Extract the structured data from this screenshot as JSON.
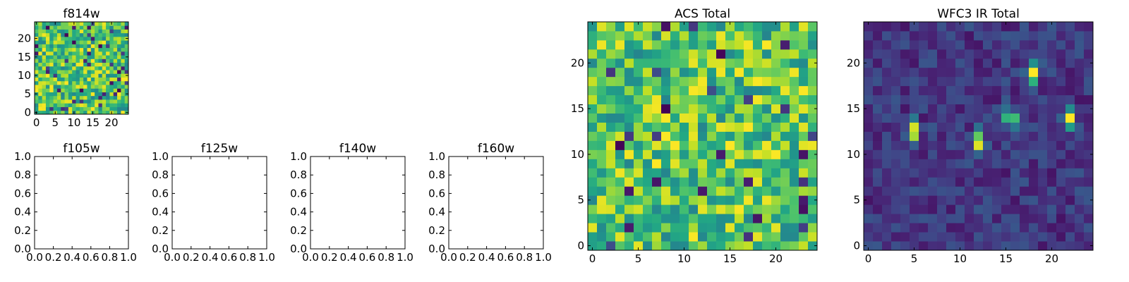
{
  "chart_data": [
    {
      "type": "heatmap",
      "title": "f814w",
      "xlabel": "",
      "ylabel": "",
      "grid": false,
      "xlim": [
        -0.5,
        24.5
      ],
      "ylim": [
        -0.5,
        24.5
      ],
      "xticks": [
        0,
        5,
        10,
        15,
        20
      ],
      "yticks": [
        0,
        5,
        10,
        15,
        20
      ],
      "xtick_labels": [
        "0",
        "5",
        "10",
        "15",
        "20"
      ],
      "ytick_labels": [
        "0",
        "5",
        "10",
        "15",
        "20"
      ],
      "colormap": "viridis",
      "grid_size": [
        25,
        25
      ],
      "pattern": "random_high"
    },
    {
      "type": "empty",
      "title": "f105w",
      "xlim": [
        0,
        1
      ],
      "ylim": [
        0,
        1
      ],
      "xticks": [
        0,
        0.2,
        0.4,
        0.6,
        0.8,
        1.0
      ],
      "yticks": [
        0,
        0.2,
        0.4,
        0.6,
        0.8,
        1.0
      ],
      "xtick_labels": [
        "0.0",
        "0.2",
        "0.4",
        "0.6",
        "0.8",
        "1.0"
      ],
      "ytick_labels": [
        "0.0",
        "0.2",
        "0.4",
        "0.6",
        "0.8",
        "1.0"
      ]
    },
    {
      "type": "empty",
      "title": "f125w",
      "xlim": [
        0,
        1
      ],
      "ylim": [
        0,
        1
      ],
      "xticks": [
        0,
        0.2,
        0.4,
        0.6,
        0.8,
        1.0
      ],
      "yticks": [
        0,
        0.2,
        0.4,
        0.6,
        0.8,
        1.0
      ],
      "xtick_labels": [
        "0.0",
        "0.2",
        "0.4",
        "0.6",
        "0.8",
        "1.0"
      ],
      "ytick_labels": [
        "0.0",
        "0.2",
        "0.4",
        "0.6",
        "0.8",
        "1.0"
      ]
    },
    {
      "type": "empty",
      "title": "f140w",
      "xlim": [
        0,
        1
      ],
      "ylim": [
        0,
        1
      ],
      "xticks": [
        0,
        0.2,
        0.4,
        0.6,
        0.8,
        1.0
      ],
      "yticks": [
        0,
        0.2,
        0.4,
        0.6,
        0.8,
        1.0
      ],
      "xtick_labels": [
        "0.0",
        "0.2",
        "0.4",
        "0.6",
        "0.8",
        "1.0"
      ],
      "ytick_labels": [
        "0.0",
        "0.2",
        "0.4",
        "0.6",
        "0.8",
        "1.0"
      ]
    },
    {
      "type": "empty",
      "title": "f160w",
      "xlim": [
        0,
        1
      ],
      "ylim": [
        0,
        1
      ],
      "xticks": [
        0,
        0.2,
        0.4,
        0.6,
        0.8,
        1.0
      ],
      "yticks": [
        0,
        0.2,
        0.4,
        0.6,
        0.8,
        1.0
      ],
      "xtick_labels": [
        "0.0",
        "0.2",
        "0.4",
        "0.6",
        "0.8",
        "1.0"
      ],
      "ytick_labels": [
        "0.0",
        "0.2",
        "0.4",
        "0.6",
        "0.8",
        "1.0"
      ]
    },
    {
      "type": "heatmap",
      "title": "ACS Total",
      "xlabel": "",
      "ylabel": "",
      "grid": false,
      "xlim": [
        -0.5,
        24.5
      ],
      "ylim": [
        -0.5,
        24.5
      ],
      "xticks": [
        0,
        5,
        10,
        15,
        20
      ],
      "yticks": [
        0,
        5,
        10,
        15,
        20
      ],
      "xtick_labels": [
        "0",
        "5",
        "10",
        "15",
        "20"
      ],
      "ytick_labels": [
        "0",
        "5",
        "10",
        "15",
        "20"
      ],
      "colormap": "viridis",
      "grid_size": [
        25,
        25
      ],
      "pattern": "random_high"
    },
    {
      "type": "heatmap",
      "title": "WFC3 IR Total",
      "xlabel": "",
      "ylabel": "",
      "grid": false,
      "xlim": [
        -0.5,
        24.5
      ],
      "ylim": [
        -0.5,
        24.5
      ],
      "xticks": [
        0,
        5,
        10,
        15,
        20
      ],
      "yticks": [
        0,
        5,
        10,
        15,
        20
      ],
      "xtick_labels": [
        "0",
        "5",
        "10",
        "15",
        "20"
      ],
      "ytick_labels": [
        "0",
        "5",
        "10",
        "15",
        "20"
      ],
      "colormap": "viridis",
      "grid_size": [
        25,
        25
      ],
      "pattern": "low_with_sources",
      "bright_sources": [
        [
          5,
          12.5
        ],
        [
          12,
          11.5
        ],
        [
          15.5,
          14
        ],
        [
          18,
          19
        ],
        [
          22,
          14
        ]
      ]
    }
  ]
}
